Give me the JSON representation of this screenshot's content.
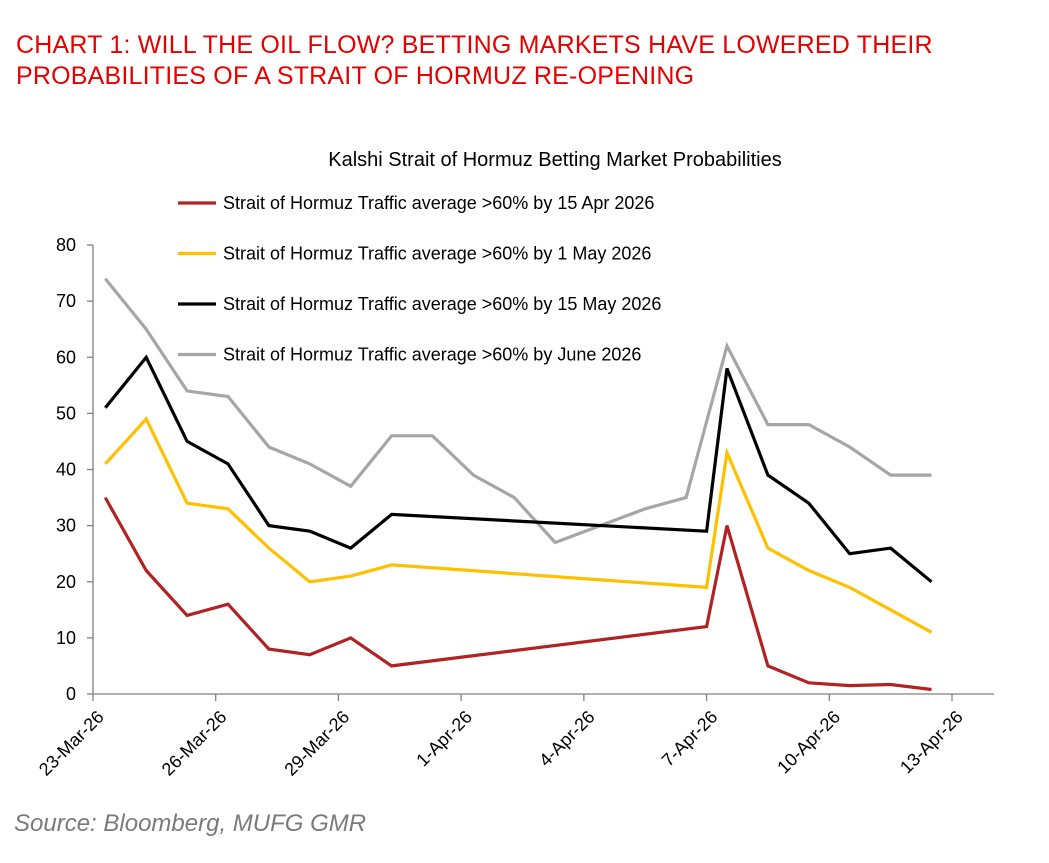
{
  "header": {
    "title_line1": "CHART 1: WILL THE OIL FLOW? BETTING MARKETS HAVE LOWERED THEIR",
    "title_line2": "PROBABILITIES OF A STRAIT OF HORMUZ RE-OPENING"
  },
  "source": "Source: Bloomberg, MUFG GMR",
  "chart_data": {
    "type": "line",
    "title": "Kalshi Strait of Hormuz Betting Market Probabilities",
    "xlabel": "",
    "ylabel": "",
    "ylim": [
      0,
      80
    ],
    "yticks": [
      0,
      10,
      20,
      30,
      40,
      50,
      60,
      70,
      80
    ],
    "xlim": [
      0,
      21
    ],
    "xticks": [
      {
        "day": 0,
        "label": "23-Mar-26"
      },
      {
        "day": 3,
        "label": "26-Mar-26"
      },
      {
        "day": 6,
        "label": "29-Mar-26"
      },
      {
        "day": 9,
        "label": "1-Apr-26"
      },
      {
        "day": 12,
        "label": "4-Apr-26"
      },
      {
        "day": 15,
        "label": "7-Apr-26"
      },
      {
        "day": 18,
        "label": "10-Apr-26"
      },
      {
        "day": 21,
        "label": "13-Apr-26"
      }
    ],
    "x_unit": "days since 23-Mar-26",
    "legend_position": "top-left",
    "grid": false,
    "series": [
      {
        "name": "Strait of Hormuz Traffic average >60% by 15 Apr 2026",
        "color": "#b22222",
        "x": [
          0.3,
          1.3,
          2.3,
          3.3,
          4.3,
          5.3,
          6.3,
          7.3,
          15.0,
          15.5,
          16.5,
          17.5,
          18.5,
          19.5,
          20.5
        ],
        "values": [
          35,
          22,
          14,
          16,
          8,
          7,
          10,
          5,
          12,
          30,
          5,
          2,
          1.5,
          1.7,
          0.8
        ]
      },
      {
        "name": "Strait of Hormuz Traffic average >60% by 1 May 2026",
        "color": "#ffc000",
        "x": [
          0.3,
          1.3,
          2.3,
          3.3,
          4.3,
          5.3,
          6.3,
          7.3,
          15.0,
          15.5,
          16.5,
          17.5,
          18.5,
          19.5,
          20.5
        ],
        "values": [
          41,
          49,
          34,
          33,
          26,
          20,
          21,
          23,
          19,
          43,
          26,
          22,
          19,
          15,
          11
        ]
      },
      {
        "name": "Strait of Hormuz Traffic average >60% by 15 May 2026",
        "color": "#000000",
        "x": [
          0.3,
          1.3,
          2.3,
          3.3,
          4.3,
          5.3,
          6.3,
          7.3,
          15.0,
          15.5,
          16.5,
          17.5,
          18.5,
          19.5,
          20.5
        ],
        "values": [
          51,
          60,
          45,
          41,
          30,
          29,
          26,
          32,
          29,
          58,
          39,
          34,
          25,
          26,
          20
        ]
      },
      {
        "name": "Strait of Hormuz Traffic average >60% by June 2026",
        "color": "#a6a6a6",
        "x": [
          0.3,
          1.3,
          2.3,
          3.3,
          4.3,
          5.3,
          6.3,
          7.3,
          8.3,
          9.3,
          10.3,
          11.3,
          13.5,
          14.5,
          15.5,
          16.5,
          17.5,
          18.5,
          19.5,
          20.5
        ],
        "values": [
          74,
          65,
          54,
          53,
          44,
          41,
          37,
          46,
          46,
          39,
          35,
          27,
          33,
          35,
          62,
          48,
          48,
          44,
          39,
          39
        ]
      }
    ]
  }
}
